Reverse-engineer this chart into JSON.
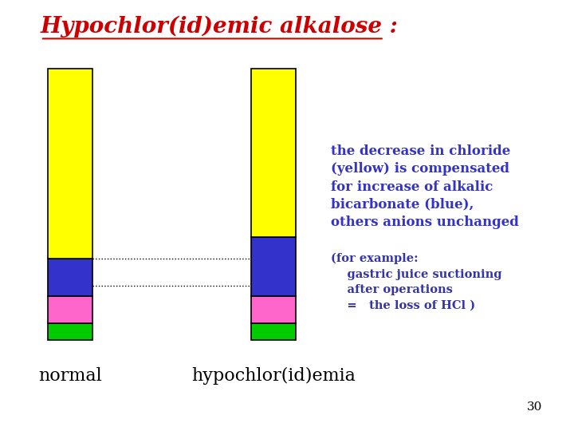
{
  "title": "Hypochlor(id)emic alkalose :",
  "title_color": "#cc0000",
  "title_fontsize": 20,
  "background_color": "#ffffff",
  "bar_width": 0.55,
  "bar_positions": [
    1.0,
    3.5
  ],
  "bar_labels": [
    "normal",
    "hypochlor(id)emia"
  ],
  "label_fontsize": 16,
  "label_color": "#000000",
  "normal_segments": {
    "green": 0.06,
    "pink": 0.1,
    "blue": 0.14,
    "yellow": 0.7
  },
  "hypo_segments": {
    "green": 0.06,
    "pink": 0.1,
    "blue": 0.22,
    "yellow": 0.62
  },
  "colors": {
    "green": "#00cc00",
    "pink": "#ff66cc",
    "blue": "#3333cc",
    "yellow": "#ffff00"
  },
  "dotted_line_y": [
    0.2,
    0.3
  ],
  "annotation_main": "the decrease in chloride\n(yellow) is compensated\nfor increase of alkalic\nbicarbonate (blue),\nothers anions unchanged",
  "annotation_example": "(for example:\n    gastric juice suctioning\n    after operations\n    =   the loss of HCl )",
  "annotation_color": "#3333cc",
  "annotation_example_color": "#3333aa",
  "page_number": "30"
}
